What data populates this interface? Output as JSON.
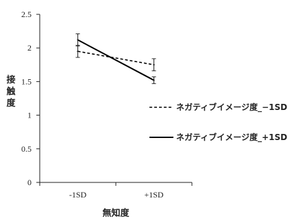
{
  "chart_data": {
    "type": "line",
    "title": "",
    "xlabel": "無知度",
    "ylabel": "接触度",
    "categories": [
      "-1SD",
      "+1SD"
    ],
    "ylim": [
      0,
      2.5
    ],
    "y_ticks": [
      "0",
      "0.5",
      "1",
      "1.5",
      "2",
      "2.5"
    ],
    "grid": false,
    "legend_position": "right",
    "error_bars": true,
    "series": [
      {
        "name": "ネガティブイメージ度_−1SD",
        "style": "dashed",
        "color": "#000000",
        "values": [
          1.95,
          1.75
        ],
        "errors": [
          0.09,
          0.09
        ]
      },
      {
        "name": "ネガティブイメージ度_+1SD",
        "style": "solid",
        "color": "#000000",
        "values": [
          2.12,
          1.52
        ],
        "errors": [
          0.09,
          0.05
        ]
      }
    ]
  }
}
